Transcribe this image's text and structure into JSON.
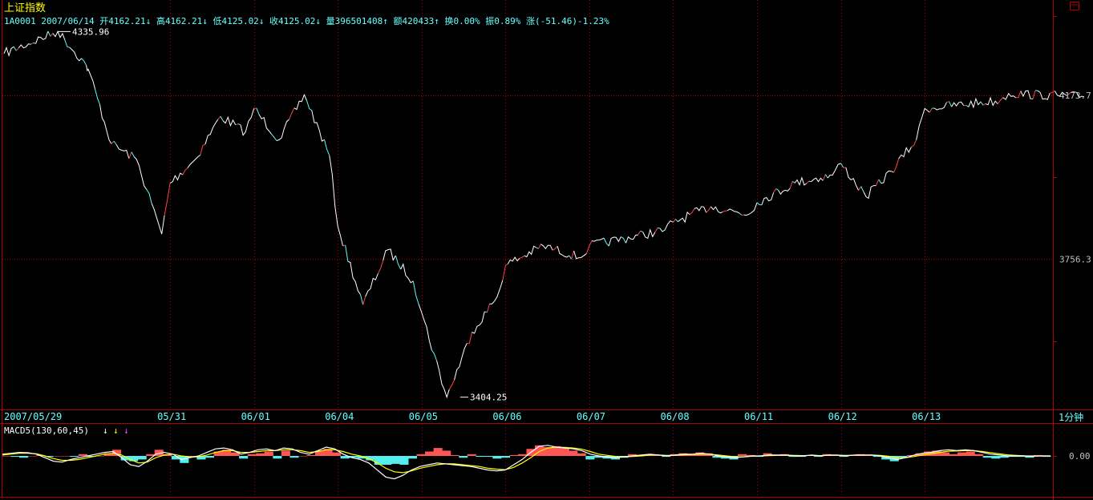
{
  "title": "上证指数",
  "code": "1A0001",
  "date": "2007/06/14",
  "stats": [
    {
      "label": "开",
      "value": "4162.21",
      "dir": "↓"
    },
    {
      "label": "高",
      "value": "4162.21",
      "dir": "↓"
    },
    {
      "label": "低",
      "value": "4125.02",
      "dir": "↓"
    },
    {
      "label": "收",
      "value": "4125.02",
      "dir": "↓"
    },
    {
      "label": "量",
      "value": "396501408",
      "dir": "↑"
    },
    {
      "label": "额",
      "value": "420433",
      "dir": "↑"
    },
    {
      "label": "换",
      "value": "0.00%",
      "dir": ""
    },
    {
      "label": "振",
      "value": "0.89%",
      "dir": ""
    },
    {
      "label": "涨",
      "value": "(-51.46)-1.23%",
      "dir": ""
    }
  ],
  "period_label": "1分钟",
  "window_icon": "window-restore-icon",
  "colors": {
    "background": "#000000",
    "grid": "#b00000",
    "up": "#ff4444",
    "down": "#55ffff",
    "axis_text": "#c0c0c0",
    "title": "#ffff00",
    "info_text": "#66ffff",
    "k_line": "#ffffff",
    "d_line": "#ffff00",
    "arrow_white": "#ffffff",
    "arrow_yellow": "#ffff00",
    "arrow_magenta": "#ff44ff"
  },
  "chart_data": [
    {
      "type": "line",
      "series": [
        {
          "values": [
            {
              "x": "2007/05/29",
              "y": 4280
            },
            {
              "x": "2007/05/29",
              "y": 4335.96
            },
            {
              "x": "2007/05/29",
              "y": 4240
            },
            {
              "x": "2007/05/30",
              "y": 4250
            },
            {
              "x": "2007/05/30",
              "y": 4050
            },
            {
              "x": "2007/05/30",
              "y": 4010
            },
            {
              "x": "2007/05/30",
              "y": 3820
            },
            {
              "x": "2007/05/31",
              "y": 3950
            },
            {
              "x": "2007/05/31",
              "y": 4010
            },
            {
              "x": "2007/05/31",
              "y": 4120
            },
            {
              "x": "2007/05/31",
              "y": 4080
            },
            {
              "x": "2007/06/01",
              "y": 4140
            },
            {
              "x": "2007/06/01",
              "y": 4060
            },
            {
              "x": "2007/06/01",
              "y": 4175
            },
            {
              "x": "2007/06/01",
              "y": 4020
            },
            {
              "x": "2007/06/04",
              "y": 3840
            },
            {
              "x": "2007/06/04",
              "y": 3640
            },
            {
              "x": "2007/06/04",
              "y": 3780
            },
            {
              "x": "2007/06/04",
              "y": 3700
            },
            {
              "x": "2007/06/05",
              "y": 3620
            },
            {
              "x": "2007/06/05",
              "y": 3404.25
            },
            {
              "x": "2007/06/05",
              "y": 3570
            },
            {
              "x": "2007/06/05",
              "y": 3660
            },
            {
              "x": "2007/06/06",
              "y": 3740
            },
            {
              "x": "2007/06/06",
              "y": 3790
            },
            {
              "x": "2007/06/06",
              "y": 3760
            },
            {
              "x": "2007/06/07",
              "y": 3790
            },
            {
              "x": "2007/06/07",
              "y": 3830
            },
            {
              "x": "2007/06/08",
              "y": 3850
            },
            {
              "x": "2007/06/08",
              "y": 3890
            },
            {
              "x": "2007/06/08",
              "y": 3870
            },
            {
              "x": "2007/06/11",
              "y": 3900
            },
            {
              "x": "2007/06/11",
              "y": 3950
            },
            {
              "x": "2007/06/11",
              "y": 3970
            },
            {
              "x": "2007/06/12",
              "y": 4000
            },
            {
              "x": "2007/06/12",
              "y": 3915
            },
            {
              "x": "2007/06/12",
              "y": 3980
            },
            {
              "x": "2007/06/12",
              "y": 4060
            },
            {
              "x": "2007/06/13",
              "y": 4140
            },
            {
              "x": "2007/06/13",
              "y": 4160
            },
            {
              "x": "2007/06/14",
              "y": 4178
            },
            {
              "x": "2007/06/14",
              "y": 4170
            }
          ]
        }
      ],
      "annotations": [
        {
          "text": "4335.96",
          "x": "2007/05/29",
          "y": 4335.96
        },
        {
          "text": "3404.25",
          "x": "2007/06/05",
          "y": 3404.25
        }
      ],
      "y_ticks": [
        {
          "value": 4173.7,
          "label": "4173.7"
        },
        {
          "value": 3756.3,
          "label": "3756.3"
        }
      ],
      "x_tick_labels": [
        "2007/05/29",
        "05/31",
        "06/01",
        "06/04",
        "06/05",
        "06/06",
        "06/07",
        "06/08",
        "06/11",
        "06/12",
        "06/13"
      ],
      "ylim": [
        3375,
        4400
      ],
      "grid": true
    },
    {
      "type": "bar",
      "indicator": "MACD5(130,60,45)",
      "y_ticks": [
        {
          "value": 0,
          "label": "0.00"
        }
      ],
      "ylim": [
        -1,
        1
      ],
      "grid": true,
      "histogram": [
        0,
        -0.05,
        -0.1,
        0,
        0.05,
        -0.05,
        0,
        0,
        -0.05,
        0.1,
        -0.05,
        0,
        0.15,
        0.35,
        -0.25,
        -0.3,
        -0.2,
        0.1,
        0.35,
        0.1,
        -0.2,
        -0.4,
        0,
        -0.2,
        -0.1,
        0.25,
        0.35,
        0.2,
        -0.15,
        0.1,
        0.15,
        0.25,
        -0.15,
        0.3,
        -0.1,
        0,
        0.05,
        0.3,
        0.4,
        0.2,
        -0.15,
        -0.1,
        -0.15,
        -0.25,
        -0.5,
        -0.5,
        -0.45,
        -0.5,
        -0.15,
        0.1,
        0.25,
        0.45,
        0.3,
        0.05,
        -0.1,
        0.1,
        -0.05,
        -0.05,
        -0.15,
        -0.1,
        0.05,
        0.1,
        0.4,
        0.6,
        0.5,
        0.55,
        0.45,
        0.3,
        0.15,
        -0.2,
        -0.1,
        -0.15,
        -0.2,
        -0.1,
        0.1,
        0.05,
        0.1,
        0.05,
        -0.05,
        0.1,
        0.15,
        0.1,
        0.2,
        0.15,
        -0.1,
        -0.15,
        -0.2,
        0.1,
        0.05,
        -0.05,
        0.15,
        0.05,
        0.1,
        -0.05,
        -0.05,
        0.05,
        -0.05,
        0.1,
        0.05,
        -0.05,
        0.05,
        0.1,
        0.05,
        -0.05,
        -0.2,
        -0.3,
        -0.1,
        0.05,
        0.15,
        0.25,
        0.3,
        0.2,
        0.1,
        0.2,
        0.25,
        0.1,
        -0.1,
        -0.15,
        -0.1,
        -0.05,
        -0.05,
        -0.1,
        0.05,
        -0.05
      ],
      "k_line": [
        0.1,
        0.15,
        0.2,
        0.18,
        0.1,
        -0.1,
        -0.3,
        -0.35,
        -0.2,
        -0.1,
        0,
        0.1,
        0.2,
        0.25,
        -0.1,
        -0.5,
        -0.6,
        -0.3,
        0.1,
        0.2,
        0.1,
        -0.2,
        -0.1,
        0,
        0.2,
        0.4,
        0.45,
        0.35,
        0.1,
        0.2,
        0.35,
        0.4,
        0.3,
        0.45,
        0.4,
        0.2,
        0.1,
        0.3,
        0.5,
        0.4,
        0.1,
        -0.1,
        -0.2,
        -0.4,
        -0.8,
        -1.2,
        -1.3,
        -1.1,
        -0.8,
        -0.6,
        -0.5,
        -0.4,
        -0.45,
        -0.5,
        -0.55,
        -0.6,
        -0.7,
        -0.8,
        -0.85,
        -0.8,
        -0.5,
        -0.2,
        0.2,
        0.55,
        0.6,
        0.5,
        0.45,
        0.4,
        0.3,
        0.1,
        0,
        -0.05,
        -0.1,
        -0.05,
        0,
        0.05,
        0.1,
        0.05,
        0,
        0.05,
        0.1,
        0.1,
        0.15,
        0.1,
        0,
        -0.05,
        -0.1,
        -0.05,
        0,
        0,
        0.05,
        0.05,
        0.05,
        0,
        0,
        0.05,
        0,
        0.05,
        0.05,
        0,
        0.05,
        0.05,
        0.05,
        0,
        -0.1,
        -0.2,
        -0.1,
        0.05,
        0.15,
        0.2,
        0.3,
        0.35,
        0.3,
        0.35,
        0.3,
        0.2,
        0.1,
        0.05,
        0,
        0,
        0,
        -0.02,
        0,
        0
      ],
      "d_line": [
        0.05,
        0.1,
        0.15,
        0.15,
        0.12,
        0,
        -0.15,
        -0.25,
        -0.25,
        -0.2,
        -0.1,
        0,
        0.1,
        0.15,
        0.05,
        -0.2,
        -0.4,
        -0.35,
        -0.1,
        0.05,
        0.1,
        0,
        -0.05,
        -0.05,
        0.05,
        0.2,
        0.3,
        0.3,
        0.2,
        0.2,
        0.25,
        0.3,
        0.3,
        0.35,
        0.35,
        0.3,
        0.2,
        0.25,
        0.35,
        0.35,
        0.25,
        0.1,
        0,
        -0.15,
        -0.4,
        -0.7,
        -0.9,
        -0.95,
        -0.85,
        -0.7,
        -0.6,
        -0.5,
        -0.45,
        -0.45,
        -0.5,
        -0.55,
        -0.6,
        -0.7,
        -0.75,
        -0.78,
        -0.65,
        -0.4,
        -0.1,
        0.25,
        0.45,
        0.5,
        0.48,
        0.45,
        0.38,
        0.25,
        0.1,
        0.03,
        -0.03,
        -0.05,
        -0.03,
        0,
        0.05,
        0.05,
        0.03,
        0.04,
        0.06,
        0.08,
        0.1,
        0.1,
        0.05,
        0,
        -0.05,
        -0.05,
        -0.02,
        0,
        0.02,
        0.03,
        0.04,
        0.03,
        0.02,
        0.03,
        0.02,
        0.03,
        0.04,
        0.03,
        0.04,
        0.04,
        0.05,
        0.03,
        -0.02,
        -0.1,
        -0.1,
        -0.03,
        0.05,
        0.12,
        0.2,
        0.27,
        0.28,
        0.3,
        0.3,
        0.25,
        0.18,
        0.12,
        0.06,
        0.03,
        0.01,
        0,
        0,
        0
      ]
    }
  ]
}
